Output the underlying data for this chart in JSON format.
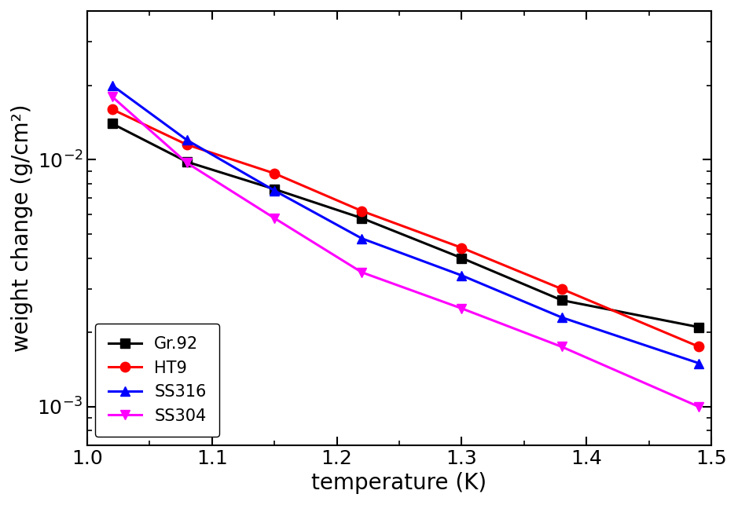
{
  "series": {
    "Gr.92": {
      "x": [
        1.02,
        1.08,
        1.15,
        1.22,
        1.3,
        1.38,
        1.49
      ],
      "y": [
        0.014,
        0.0098,
        0.0076,
        0.0058,
        0.004,
        0.0027,
        0.0021
      ],
      "color": "#000000",
      "marker": "s",
      "linestyle": "-"
    },
    "HT9": {
      "x": [
        1.02,
        1.08,
        1.15,
        1.22,
        1.3,
        1.38,
        1.49
      ],
      "y": [
        0.016,
        0.0115,
        0.0088,
        0.0062,
        0.0044,
        0.003,
        0.00175
      ],
      "color": "#ff0000",
      "marker": "o",
      "linestyle": "-"
    },
    "SS316": {
      "x": [
        1.02,
        1.08,
        1.15,
        1.22,
        1.3,
        1.38,
        1.49
      ],
      "y": [
        0.02,
        0.012,
        0.0075,
        0.0048,
        0.0034,
        0.0023,
        0.0015
      ],
      "color": "#0000ff",
      "marker": "^",
      "linestyle": "-"
    },
    "SS304": {
      "x": [
        1.02,
        1.08,
        1.15,
        1.22,
        1.3,
        1.38,
        1.49
      ],
      "y": [
        0.018,
        0.0097,
        0.0058,
        0.0035,
        0.0025,
        0.00175,
        0.001
      ],
      "color": "#ff00ff",
      "marker": "v",
      "linestyle": "-"
    }
  },
  "xlabel": "temperature (K)",
  "ylabel": "weight change (g/cm²)",
  "xlim": [
    1.0,
    1.5
  ],
  "ylim": [
    0.0007,
    0.04
  ],
  "xticks": [
    1.0,
    1.1,
    1.2,
    1.3,
    1.4,
    1.5
  ],
  "legend_loc": "lower left",
  "marker_size": 9,
  "linewidth": 2.2,
  "tick_fontsize": 18,
  "label_fontsize": 20,
  "legend_fontsize": 15
}
